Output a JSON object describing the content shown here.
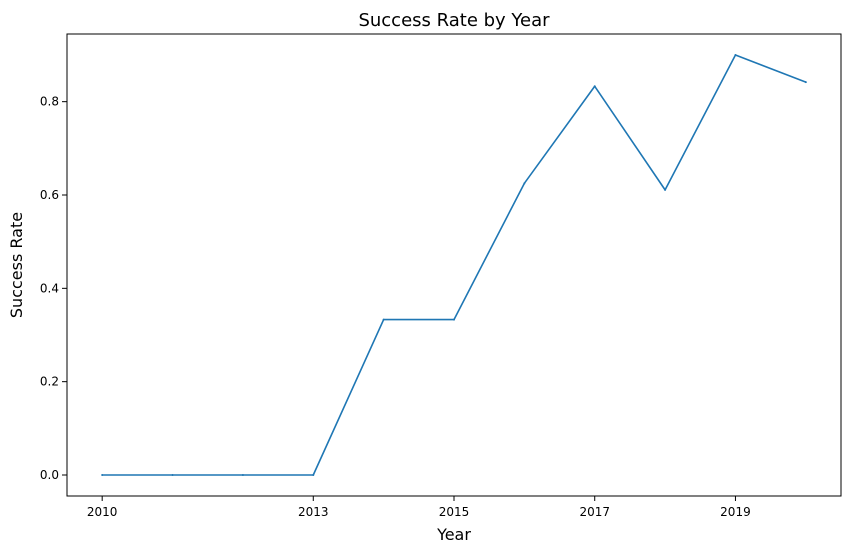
{
  "chart_data": {
    "type": "line",
    "title": "Success Rate by Year",
    "xlabel": "Year",
    "ylabel": "Success Rate",
    "x": [
      2010,
      2011,
      2012,
      2013,
      2014,
      2015,
      2016,
      2017,
      2018,
      2019,
      2020
    ],
    "series": [
      {
        "values": [
          0.0,
          0.0,
          0.0,
          0.0,
          0.333,
          0.333,
          0.625,
          0.833,
          0.611,
          0.9,
          0.842
        ]
      }
    ],
    "xticks": [
      "2010",
      "2013",
      "2015",
      "2017",
      "2019"
    ],
    "yticks": [
      "0.0",
      "0.2",
      "0.4",
      "0.6",
      "0.8"
    ],
    "xlim": [
      2009.5,
      2020.5
    ],
    "ylim": [
      -0.045,
      0.945
    ],
    "grid": false,
    "line_color": "#1f77b4"
  }
}
